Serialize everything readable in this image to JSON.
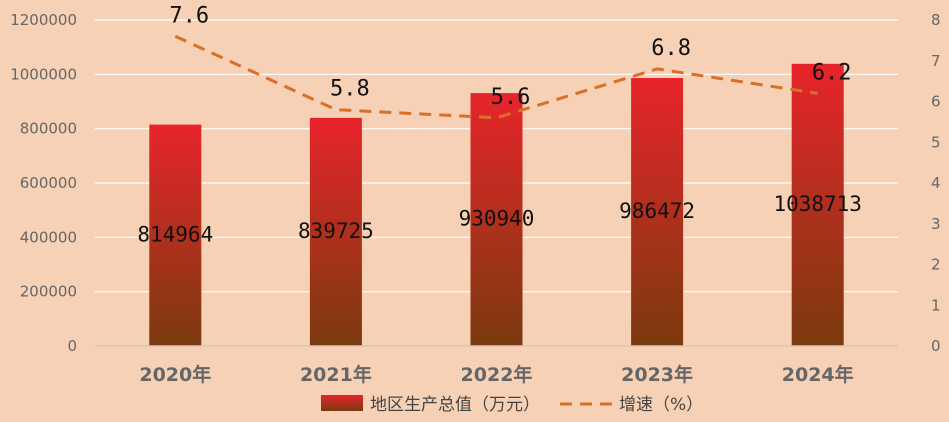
{
  "chart_data": {
    "type": "bar",
    "categories": [
      "2020年",
      "2021年",
      "2022年",
      "2023年",
      "2024年"
    ],
    "series": [
      {
        "name": "地区生产总值（万元）",
        "type": "bar",
        "axis": "left",
        "values": [
          814964,
          839725,
          930940,
          986472,
          1038713
        ],
        "labels": [
          "814964",
          "839725",
          "930940",
          "986472",
          "1038713"
        ]
      },
      {
        "name": "增速（%）",
        "type": "line",
        "style": "dashed",
        "axis": "right",
        "values": [
          7.6,
          5.8,
          5.6,
          6.8,
          6.2
        ],
        "labels": [
          "7.6",
          "5.8",
          "5.6",
          "6.8",
          "6.2"
        ]
      }
    ],
    "y_left": {
      "ylim": [
        0,
        1200000
      ],
      "ticks": [
        "0",
        "200000",
        "400000",
        "600000",
        "800000",
        "1000000",
        "1200000"
      ]
    },
    "y_right": {
      "ylim": [
        0,
        8
      ],
      "ticks": [
        "0",
        "1",
        "2",
        "3",
        "4",
        "5",
        "6",
        "7",
        "8"
      ]
    },
    "grid": true,
    "legend_position": "bottom",
    "colors": {
      "background": "#f7d1b5",
      "bar_top": "#e8242b",
      "bar_bottom": "#7a3a0f",
      "line": "#d8702a",
      "grid": "#ffffff"
    }
  }
}
